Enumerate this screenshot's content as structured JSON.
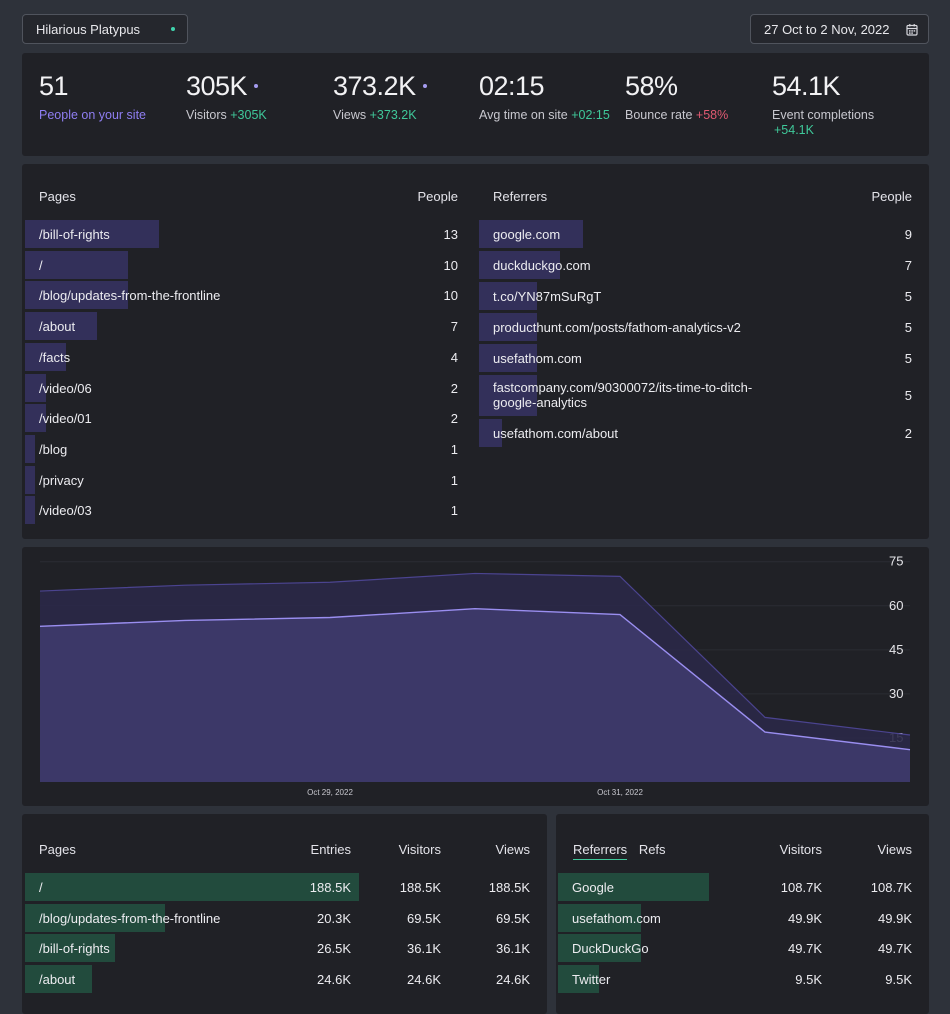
{
  "header": {
    "site_name": "Hilarious Platypus",
    "date_range": "27 Oct to 2 Nov, 2022"
  },
  "stats": [
    {
      "value": "51",
      "label": "People on your site",
      "delta": ""
    },
    {
      "value": "305K",
      "label": "Visitors",
      "delta": "+305K"
    },
    {
      "value": "373.2K",
      "label": "Views",
      "delta": "+373.2K"
    },
    {
      "value": "02:15",
      "label": "Avg time on site",
      "delta": "+02:15"
    },
    {
      "value": "58%",
      "label": "Bounce rate",
      "delta": "+58%"
    },
    {
      "value": "54.1K",
      "label": "Event completions",
      "delta": "+54.1K"
    }
  ],
  "live_pages": {
    "header_label": "Pages",
    "header_count": "People",
    "rows": [
      {
        "path": "/bill-of-rights",
        "count": 13
      },
      {
        "path": "/",
        "count": 10
      },
      {
        "path": "/blog/updates-from-the-frontline",
        "count": 10
      },
      {
        "path": "/about",
        "count": 7
      },
      {
        "path": "/facts",
        "count": 4
      },
      {
        "path": "/video/06",
        "count": 2
      },
      {
        "path": "/video/01",
        "count": 2
      },
      {
        "path": "/blog",
        "count": 1
      },
      {
        "path": "/privacy",
        "count": 1
      },
      {
        "path": "/video/03",
        "count": 1
      }
    ]
  },
  "live_referrers": {
    "header_label": "Referrers",
    "header_count": "People",
    "rows": [
      {
        "source": "google.com",
        "count": 9
      },
      {
        "source": "duckduckgo.com",
        "count": 7
      },
      {
        "source": "t.co/YN87mSuRgT",
        "count": 5
      },
      {
        "source": "producthunt.com/posts/fathom-analytics-v2",
        "count": 5
      },
      {
        "source": "usefathom.com",
        "count": 5
      },
      {
        "source": "fastcompany.com/90300072/its-time-to-ditch-google-analytics",
        "count": 5
      },
      {
        "source": "usefathom.com/about",
        "count": 2
      }
    ]
  },
  "chart_data": {
    "type": "area",
    "x": [
      "",
      "",
      "Oct 29, 2022",
      "",
      "Oct 31, 2022",
      "",
      ""
    ],
    "series": [
      {
        "values": [
          65,
          67,
          68,
          71,
          70,
          22,
          16
        ]
      },
      {
        "values": [
          53,
          55,
          56,
          59,
          57,
          17,
          11
        ]
      }
    ],
    "ylim": [
      0,
      80
    ],
    "yticks": [
      "75",
      "60",
      "45",
      "30",
      "15"
    ],
    "grid": true,
    "colors": {
      "line": "#9a8ef0",
      "fill_back": "#2a2848",
      "fill_front": "#403c6e"
    }
  },
  "bottom_pages": {
    "headers": {
      "label": "Pages",
      "entries": "Entries",
      "visitors": "Visitors",
      "views": "Views"
    },
    "rows": [
      {
        "path": "/",
        "entries": "188.5K",
        "visitors": "188.5K",
        "views": "188.5K",
        "share": 1.0
      },
      {
        "path": "/blog/updates-from-the-frontline",
        "entries": "20.3K",
        "visitors": "69.5K",
        "views": "69.5K",
        "share": 0.42
      },
      {
        "path": "/bill-of-rights",
        "entries": "26.5K",
        "visitors": "36.1K",
        "views": "36.1K",
        "share": 0.27
      },
      {
        "path": "/about",
        "entries": "24.6K",
        "visitors": "24.6K",
        "views": "24.6K",
        "share": 0.2
      }
    ]
  },
  "bottom_referrers": {
    "tabs": [
      "Referrers",
      "Refs"
    ],
    "headers": {
      "visitors": "Visitors",
      "views": "Views"
    },
    "rows": [
      {
        "source": "Google",
        "visitors": "108.7K",
        "views": "108.7K",
        "share": 1.0
      },
      {
        "source": "usefathom.com",
        "visitors": "49.9K",
        "views": "49.9K",
        "share": 0.55
      },
      {
        "source": "DuckDuckGo",
        "visitors": "49.7K",
        "views": "49.7K",
        "share": 0.55
      },
      {
        "source": "Twitter",
        "visitors": "9.5K",
        "views": "9.5K",
        "share": 0.27
      }
    ]
  },
  "colors": {
    "accent": "#8f7ef2",
    "positive": "#3fc89a",
    "negative": "#e05a72",
    "bar_purple": "#33305a",
    "bar_green": "#224b3d"
  }
}
